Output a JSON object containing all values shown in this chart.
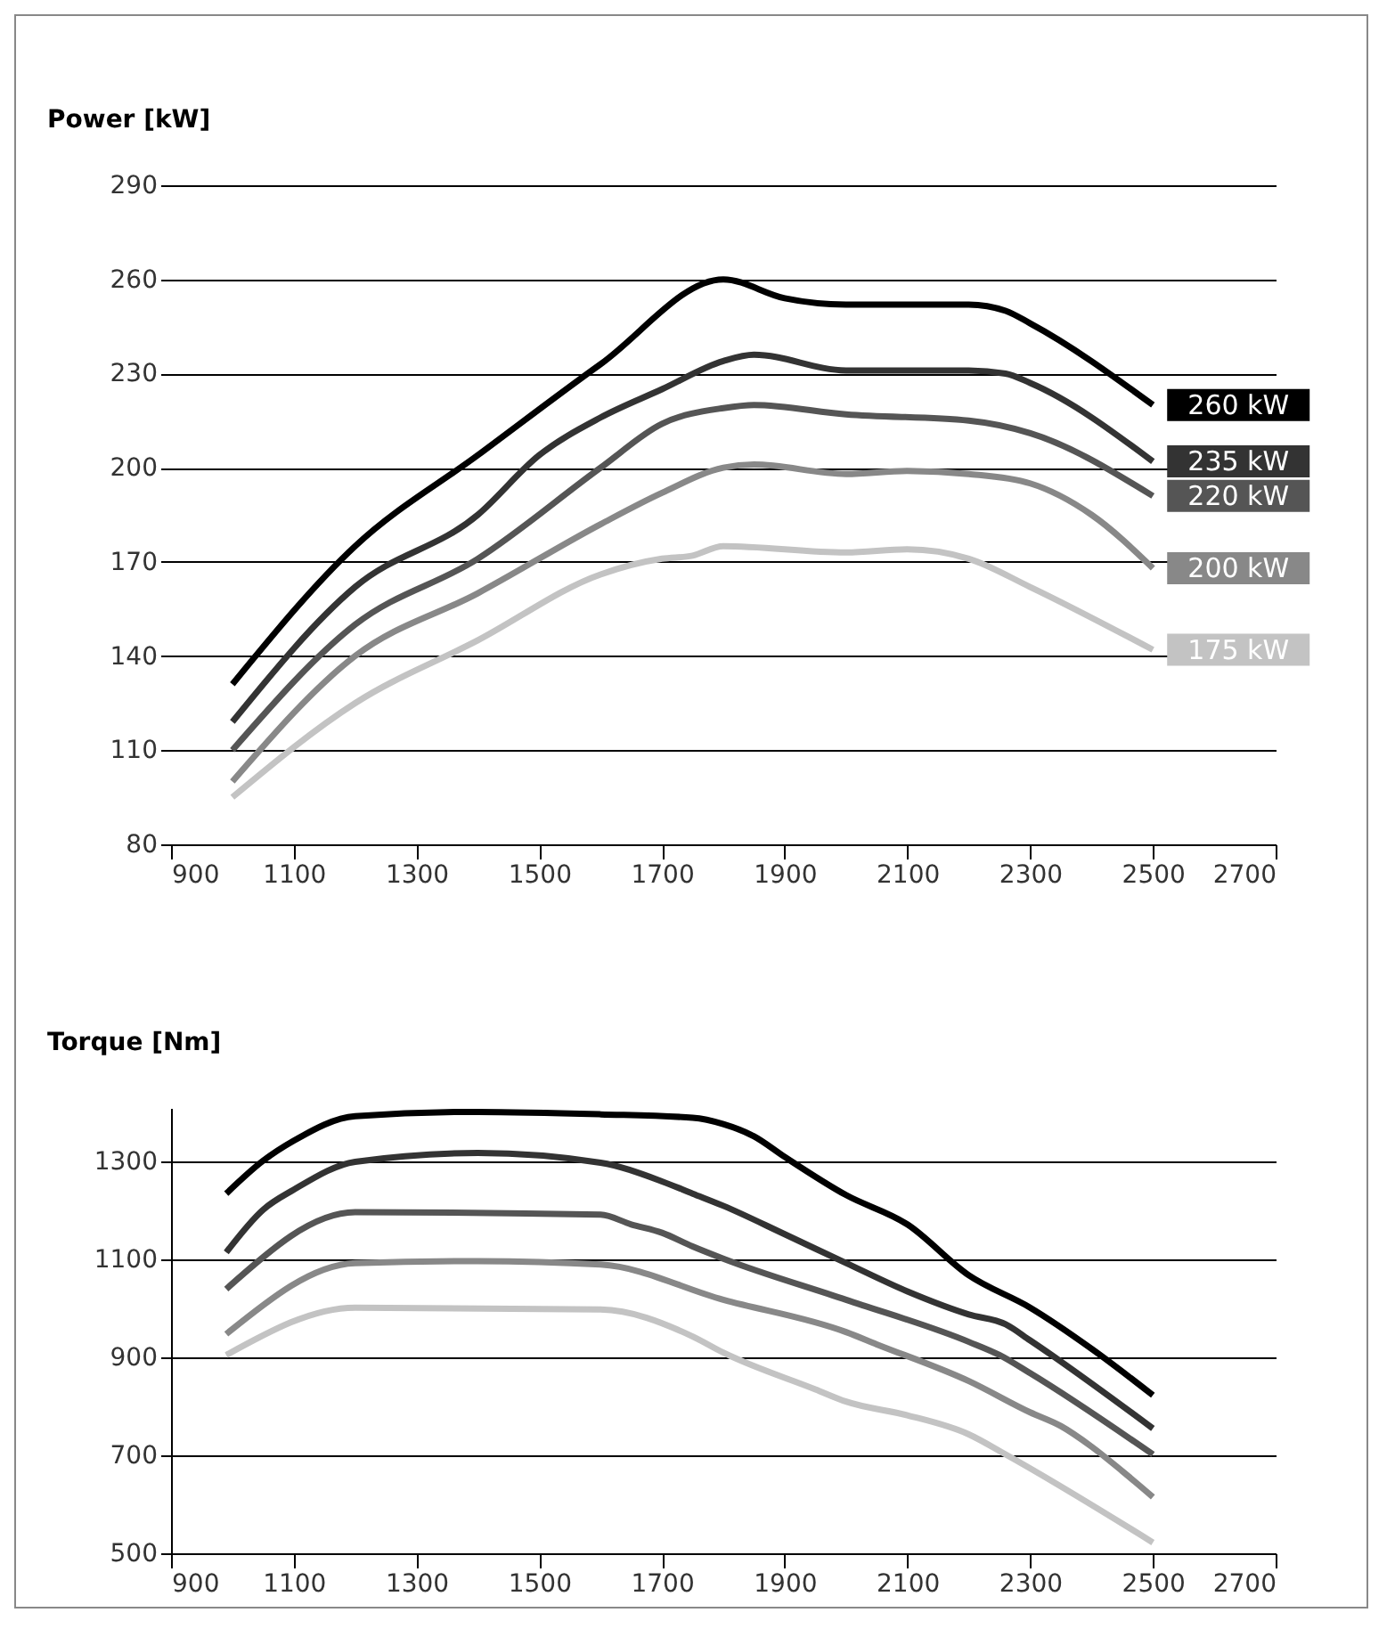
{
  "chart_data": [
    {
      "type": "line",
      "ylabel": "Power [kW]",
      "xlim": [
        900,
        2700
      ],
      "xticks": [
        900,
        1100,
        1300,
        1500,
        1700,
        1900,
        2100,
        2300,
        2500,
        2700
      ],
      "ylim": [
        80,
        290
      ],
      "yticks": [
        80,
        110,
        140,
        170,
        200,
        230,
        260,
        290
      ],
      "grid": "y",
      "legend": false,
      "series": [
        {
          "name": "260 kW",
          "color": "#000000",
          "x": [
            1000,
            1200,
            1400,
            1600,
            1800,
            1900,
            2000,
            2200,
            2260,
            2300,
            2500
          ],
          "values": [
            131,
            175,
            204,
            233,
            260,
            254,
            252,
            252,
            250,
            246,
            220
          ]
        },
        {
          "name": "235 kW",
          "color": "#333333",
          "x": [
            1000,
            1200,
            1400,
            1500,
            1600,
            1700,
            1800,
            1850,
            2000,
            2200,
            2260,
            2300,
            2500
          ],
          "values": [
            119,
            162,
            185,
            204,
            216,
            225,
            234,
            236,
            231,
            231,
            230,
            227,
            202
          ]
        },
        {
          "name": "220 kW",
          "color": "#555555",
          "x": [
            1000,
            1200,
            1400,
            1600,
            1700,
            1800,
            1850,
            2000,
            2200,
            2300,
            2500
          ],
          "values": [
            110,
            150,
            171,
            200,
            214,
            219,
            220,
            217,
            215,
            211,
            191
          ]
        },
        {
          "name": "200 kW",
          "color": "#888888",
          "x": [
            1000,
            1200,
            1400,
            1600,
            1700,
            1800,
            1850,
            2000,
            2100,
            2200,
            2300,
            2400,
            2500
          ],
          "values": [
            100,
            140,
            160,
            182,
            192,
            200,
            201,
            198,
            199,
            198,
            195,
            185,
            168
          ]
        },
        {
          "name": "175 kW",
          "color": "#c3c3c3",
          "x": [
            1000,
            1200,
            1400,
            1600,
            1700,
            1750,
            1800,
            2000,
            2100,
            2200,
            2300,
            2500
          ],
          "values": [
            95,
            125,
            145,
            166,
            171,
            172,
            175,
            173,
            174,
            171,
            162,
            142
          ]
        }
      ]
    },
    {
      "type": "line",
      "ylabel": "Torque [Nm]",
      "xlim": [
        900,
        2700
      ],
      "xticks": [
        900,
        1100,
        1300,
        1500,
        1700,
        1900,
        2100,
        2300,
        2500,
        2700
      ],
      "ylim": [
        500,
        1410
      ],
      "yticks": [
        500,
        700,
        900,
        1100,
        1300
      ],
      "grid": "y",
      "legend": false,
      "series": [
        {
          "color": "#000000",
          "x": [
            990,
            1050,
            1100,
            1200,
            1400,
            1600,
            1750,
            1800,
            1850,
            1900,
            2000,
            2100,
            2200,
            2300,
            2400,
            2500
          ],
          "values": [
            1235,
            1302,
            1343,
            1393,
            1402,
            1397,
            1390,
            1377,
            1352,
            1310,
            1232,
            1172,
            1068,
            1002,
            918,
            823
          ]
        },
        {
          "color": "#333333",
          "x": [
            990,
            1050,
            1100,
            1200,
            1400,
            1600,
            1700,
            1750,
            1800,
            1900,
            2000,
            2100,
            2200,
            2260,
            2300,
            2500
          ],
          "values": [
            1115,
            1202,
            1243,
            1300,
            1318,
            1298,
            1260,
            1235,
            1210,
            1152,
            1093,
            1035,
            988,
            968,
            935,
            755
          ]
        },
        {
          "color": "#555555",
          "x": [
            990,
            1200,
            1600,
            1650,
            1700,
            1750,
            1800,
            2000,
            2200,
            2250,
            2300,
            2500
          ],
          "values": [
            1040,
            1197,
            1192,
            1172,
            1155,
            1127,
            1102,
            1018,
            932,
            905,
            868,
            702
          ]
        },
        {
          "color": "#888888",
          "x": [
            990,
            1200,
            1400,
            1600,
            1800,
            2000,
            2050,
            2200,
            2300,
            2350,
            2400,
            2450,
            2500
          ],
          "values": [
            948,
            1093,
            1097,
            1090,
            1018,
            952,
            927,
            852,
            788,
            760,
            718,
            668,
            615
          ]
        },
        {
          "color": "#c3c3c3",
          "x": [
            990,
            1200,
            1600,
            1750,
            1800,
            1950,
            2000,
            2100,
            2200,
            2260,
            2500
          ],
          "values": [
            905,
            1002,
            998,
            943,
            910,
            835,
            810,
            782,
            743,
            702,
            522
          ]
        }
      ]
    }
  ]
}
